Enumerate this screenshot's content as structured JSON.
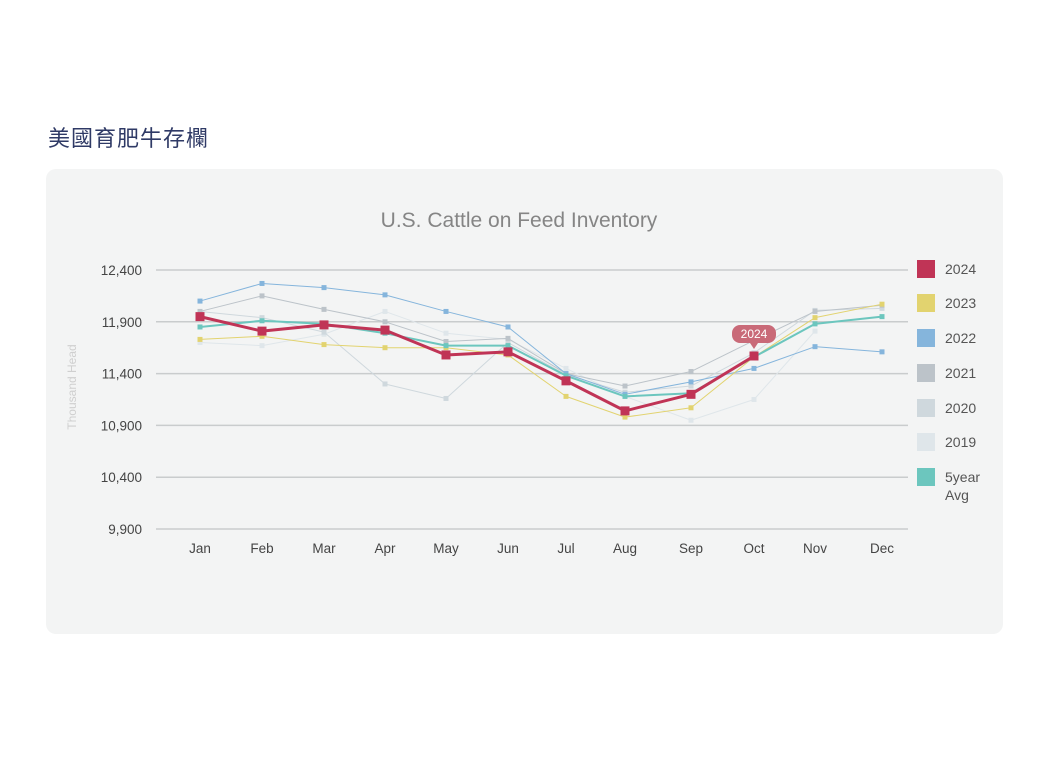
{
  "page": {
    "heading": "美國育肥牛存欄"
  },
  "chart_data": {
    "type": "line",
    "title": "U.S. Cattle on Feed Inventory",
    "ylabel": "Thousand Head",
    "xlabel": "",
    "categories": [
      "Jan",
      "Feb",
      "Mar",
      "Apr",
      "May",
      "Jun",
      "Jul",
      "Aug",
      "Sep",
      "Oct",
      "Nov",
      "Dec"
    ],
    "ylim": [
      9900,
      12400
    ],
    "yticks": [
      "12,400",
      "11,900",
      "11,400",
      "10,900",
      "10,400",
      "9,900"
    ],
    "ytick_values": [
      12400,
      11900,
      11400,
      10900,
      10400,
      9900
    ],
    "grid": true,
    "legend_position": "right",
    "highlight": {
      "series": "2024",
      "category": "Oct",
      "label": "2024"
    },
    "series": [
      {
        "name": "2019",
        "color": "#dfe6ea",
        "width": 1,
        "values": [
          11700,
          11670,
          11780,
          12000,
          11790,
          11730,
          11450,
          11180,
          10950,
          11150,
          11810,
          null
        ]
      },
      {
        "name": "2020",
        "color": "#cfd8dd",
        "width": 1,
        "values": [
          12000,
          11940,
          11800,
          11300,
          11160,
          11700,
          11390,
          11220,
          11280,
          11600,
          12010,
          12030
        ]
      },
      {
        "name": "2021",
        "color": "#bcc3c9",
        "width": 1,
        "values": [
          12000,
          12150,
          12020,
          11900,
          11710,
          11740,
          11400,
          11280,
          11420,
          11720,
          12000,
          12060
        ]
      },
      {
        "name": "2022",
        "color": "#85b5dc",
        "width": 1,
        "values": [
          12100,
          12270,
          12230,
          12160,
          12000,
          11850,
          11400,
          11200,
          11320,
          11450,
          11660,
          11610
        ]
      },
      {
        "name": "2023",
        "color": "#e2d36f",
        "width": 1,
        "values": [
          11730,
          11760,
          11680,
          11650,
          11650,
          11580,
          11180,
          10980,
          11070,
          11560,
          11940,
          12070
        ]
      },
      {
        "name": "5year Avg",
        "color": "#6cc6be",
        "width": 2,
        "values": [
          11850,
          11910,
          11880,
          11790,
          11670,
          11670,
          11380,
          11180,
          11210,
          11560,
          11880,
          11950
        ]
      },
      {
        "name": "2024",
        "color": "#c03456",
        "width": 3,
        "values": [
          11950,
          11810,
          11870,
          11820,
          11580,
          11610,
          11330,
          11040,
          11200,
          11570,
          null,
          null
        ]
      }
    ],
    "legend": [
      {
        "name": "2024",
        "color": "#c03456"
      },
      {
        "name": "2023",
        "color": "#e2d36f"
      },
      {
        "name": "2022",
        "color": "#85b5dc"
      },
      {
        "name": "2021",
        "color": "#bcc3c9"
      },
      {
        "name": "2020",
        "color": "#cfd8dd"
      },
      {
        "name": "2019",
        "color": "#dfe6ea"
      },
      {
        "name": "5year Avg",
        "color": "#6cc6be"
      }
    ]
  }
}
